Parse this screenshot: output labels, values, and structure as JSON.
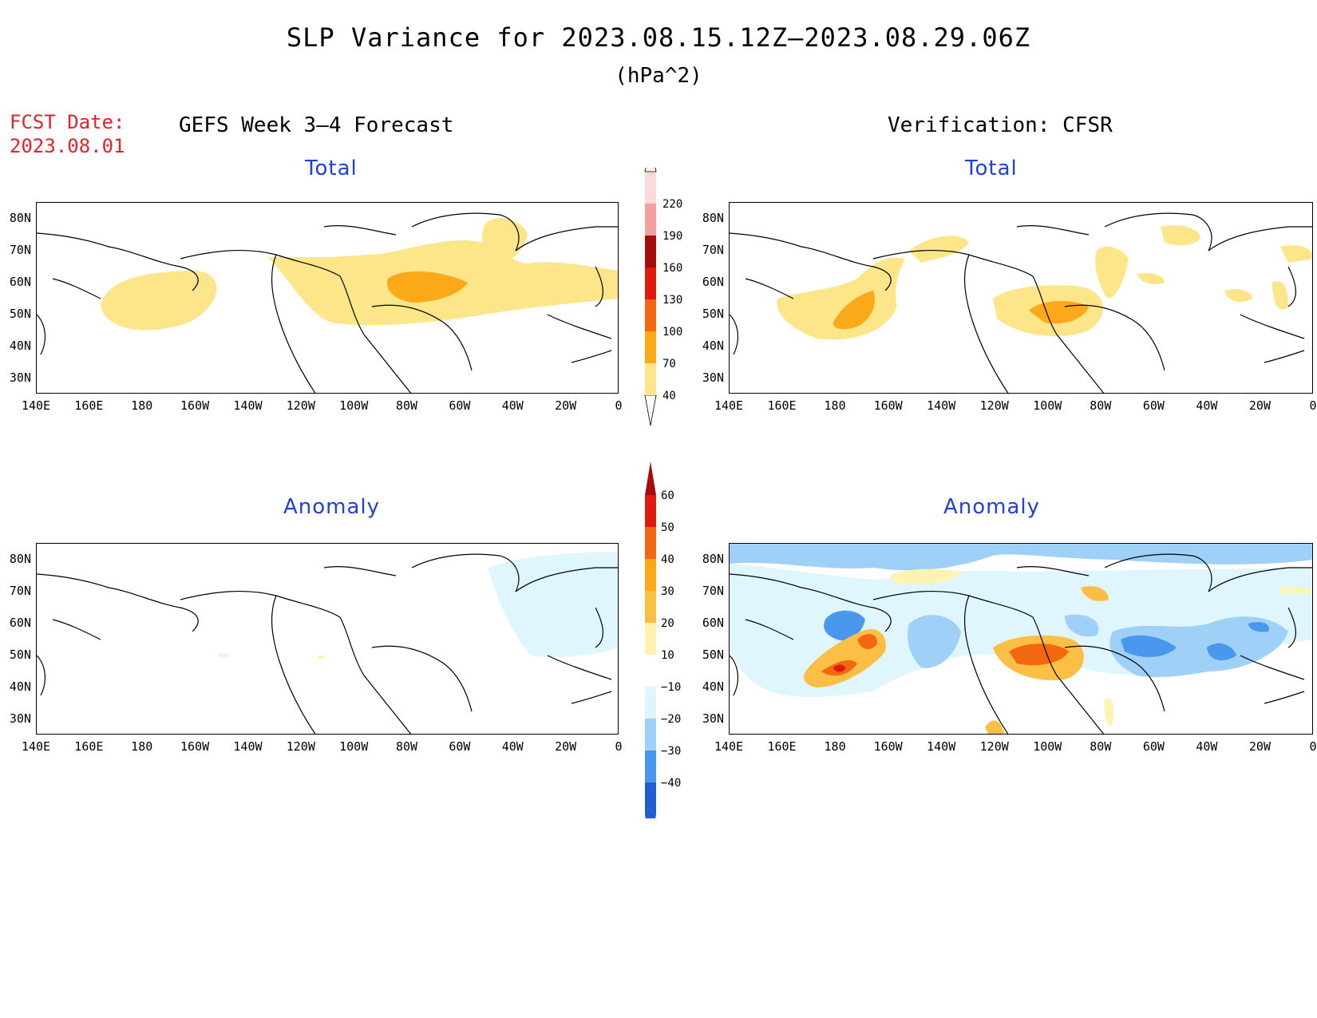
{
  "title": "SLP Variance for 2023.08.15.12Z–2023.08.29.06Z",
  "units": "(hPa^2)",
  "fcst_date_label": "FCST Date:",
  "fcst_date_value": "2023.08.01",
  "left_header": "GEFS Week 3–4 Forecast",
  "right_header": "Verification: CFSR",
  "subtitles": {
    "top_left": "Total",
    "top_right": "Total",
    "bottom_left": "Anomaly",
    "bottom_right": "Anomaly"
  },
  "lat_labels": [
    "80N",
    "70N",
    "60N",
    "50N",
    "40N",
    "30N"
  ],
  "lon_labels": [
    "140E",
    "160E",
    "180",
    "160W",
    "140W",
    "120W",
    "100W",
    "80W",
    "60W",
    "40W",
    "20W",
    "0"
  ],
  "total_colorbar": {
    "levels": [
      "40",
      "70",
      "100",
      "130",
      "160",
      "190",
      "220"
    ],
    "colors": [
      "#fde68a",
      "#fba919",
      "#f46711",
      "#dd1c0f",
      "#a50d0d",
      "#f3a0a0",
      "#fcdada"
    ]
  },
  "anomaly_colorbar": {
    "levels": [
      "60",
      "50",
      "40",
      "30",
      "20",
      "10",
      "−10",
      "−20",
      "−30",
      "−40"
    ],
    "colors": [
      "#a50d0d",
      "#dd1c0f",
      "#f46711",
      "#fba919",
      "#fbbf45",
      "#fef3b0",
      "#ffffff",
      "#e0f6fe",
      "#9fd0f7",
      "#4a98ee",
      "#1f5fd0"
    ]
  }
}
